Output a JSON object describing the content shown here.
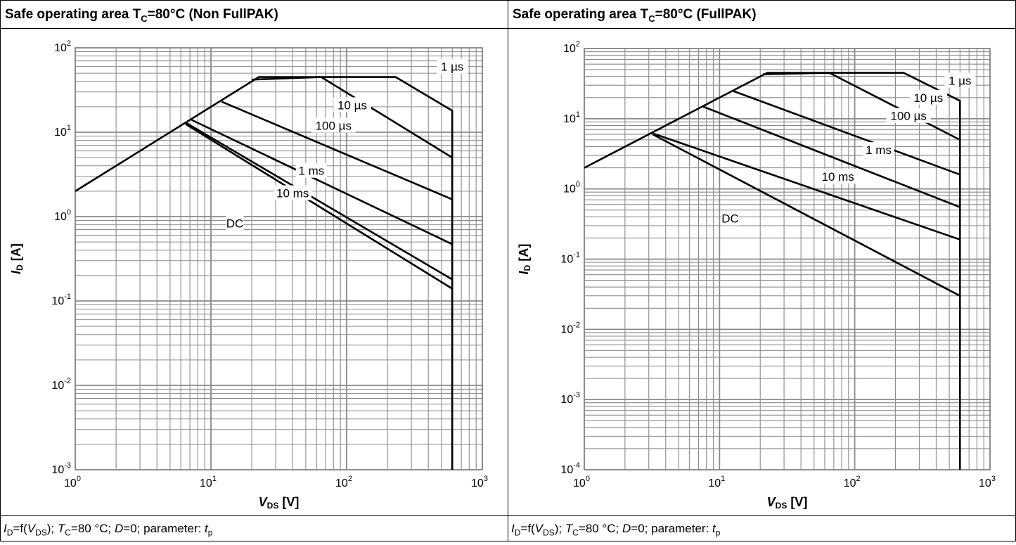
{
  "panels": [
    {
      "title_main": "Safe operating area T",
      "title_sub": "C",
      "title_rest": "=80°C (Non FullPAK)",
      "footer": {
        "p1": "I",
        "p1s": "D",
        "p2": "=f(",
        "p3": "V",
        "p3s": "DS",
        "p4": "); ",
        "p5": "T",
        "p5s": "C",
        "p6": "=80 °C; ",
        "p7": "D",
        "p8": "=0; parameter: ",
        "p9": "t",
        "p9s": "p"
      }
    },
    {
      "title_main": "Safe operating area T",
      "title_sub": "C",
      "title_rest": "=80°C (FullPAK)",
      "footer": {
        "p1": "I",
        "p1s": "D",
        "p2": "=f(",
        "p3": "V",
        "p3s": "DS",
        "p4": "); ",
        "p5": "T",
        "p5s": "C",
        "p6": "=80 °C; ",
        "p7": "D",
        "p8": "=0; parameter: ",
        "p9": "t",
        "p9s": "p"
      }
    }
  ],
  "chart_data": [
    {
      "type": "line",
      "title": "Safe operating area TC=80°C (Non FullPAK)",
      "xlabel": "VDS [V]",
      "ylabel": "ID [A]",
      "x_scale": "log",
      "y_scale": "log",
      "xlim": [
        1,
        1000
      ],
      "ylim": [
        0.001,
        100
      ],
      "grid": true,
      "x_ticks": [
        "0",
        "1",
        "2",
        "3"
      ],
      "y_ticks": [
        "-3",
        "-2",
        "-1",
        "0",
        "1",
        "2"
      ],
      "series": [
        {
          "name": "1 µs",
          "label_at": [
            600,
            60
          ],
          "points": [
            [
              1,
              2.0
            ],
            [
              22.5,
              45
            ],
            [
              230,
              45
            ],
            [
              600,
              18
            ],
            [
              600,
              0.001
            ]
          ]
        },
        {
          "name": "10 µs",
          "label_at": [
            110,
            21
          ],
          "points": [
            [
              20,
              42
            ],
            [
              65,
              45
            ],
            [
              600,
              5
            ],
            [
              600,
              0.001
            ]
          ]
        },
        {
          "name": "100 µs",
          "label_at": [
            80,
            12
          ],
          "points": [
            [
              12,
              23
            ],
            [
              600,
              1.6
            ]
          ]
        },
        {
          "name": "1 ms",
          "label_at": [
            55,
            3.5
          ],
          "points": [
            [
              7.2,
              14
            ],
            [
              600,
              0.47
            ]
          ]
        },
        {
          "name": "10 ms",
          "label_at": [
            40,
            1.9
          ],
          "points": [
            [
              6.5,
              13
            ],
            [
              600,
              0.18
            ]
          ]
        },
        {
          "name": "DC",
          "label_at": [
            15,
            0.83
          ],
          "points": [
            [
              6.5,
              12.5
            ],
            [
              600,
              0.14
            ]
          ]
        }
      ]
    },
    {
      "type": "line",
      "title": "Safe operating area TC=80°C (FullPAK)",
      "xlabel": "VDS [V]",
      "ylabel": "ID [A]",
      "x_scale": "log",
      "y_scale": "log",
      "xlim": [
        1,
        1000
      ],
      "ylim": [
        0.0001,
        100
      ],
      "grid": true,
      "x_ticks": [
        "0",
        "1",
        "2",
        "3"
      ],
      "y_ticks": [
        "-4",
        "-3",
        "-2",
        "-1",
        "0",
        "1",
        "2"
      ],
      "series": [
        {
          "name": "1 µs",
          "label_at": [
            600,
            35
          ],
          "points": [
            [
              1,
              2.0
            ],
            [
              22.5,
              45
            ],
            [
              230,
              45
            ],
            [
              600,
              18
            ],
            [
              600,
              0.0001
            ]
          ]
        },
        {
          "name": "10 µs",
          "label_at": [
            350,
            20
          ],
          "points": [
            [
              21,
              43
            ],
            [
              65,
              45
            ],
            [
              600,
              5
            ]
          ]
        },
        {
          "name": "100 µs",
          "label_at": [
            250,
            11
          ],
          "points": [
            [
              12.5,
              25
            ],
            [
              600,
              1.6
            ]
          ]
        },
        {
          "name": "1 ms",
          "label_at": [
            150,
            3.6
          ],
          "points": [
            [
              7.5,
              15
            ],
            [
              600,
              0.55
            ]
          ]
        },
        {
          "name": "10 ms",
          "label_at": [
            75,
            1.5
          ],
          "points": [
            [
              3.2,
              6.2
            ],
            [
              600,
              0.19
            ]
          ]
        },
        {
          "name": "DC",
          "label_at": [
            12,
            0.38
          ],
          "points": [
            [
              3.2,
              6.0
            ],
            [
              600,
              0.03
            ]
          ]
        }
      ]
    }
  ]
}
